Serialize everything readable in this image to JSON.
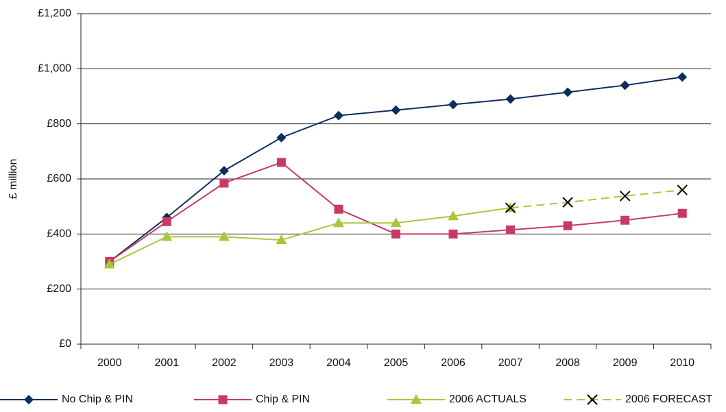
{
  "chart_data": {
    "type": "line",
    "y_label": "£ million",
    "categories": [
      "2000",
      "2001",
      "2002",
      "2003",
      "2004",
      "2005",
      "2006",
      "2007",
      "2008",
      "2009",
      "2010"
    ],
    "series": [
      {
        "name": "No Chip & PIN",
        "color": "#0d2d5e",
        "marker": "diamond",
        "values": [
          300,
          460,
          630,
          750,
          830,
          850,
          870,
          890,
          915,
          940,
          970
        ]
      },
      {
        "name": "Chip & PIN",
        "color": "#c83a62",
        "marker": "square",
        "values": [
          300,
          445,
          585,
          660,
          490,
          400,
          400,
          415,
          430,
          450,
          475
        ]
      },
      {
        "name": "2006 ACTUALS",
        "color": "#a6c83c",
        "marker": "triangle",
        "values": [
          290,
          390,
          390,
          378,
          440,
          440,
          465,
          495,
          null,
          null,
          null
        ]
      },
      {
        "name": "2006 FORECAST",
        "color": "#a6c83c",
        "marker": "x",
        "marker_color": "#000000",
        "dashed": true,
        "values": [
          null,
          null,
          null,
          null,
          null,
          null,
          null,
          495,
          515,
          538,
          560
        ]
      }
    ],
    "ylim": [
      0,
      1200
    ],
    "yticks": [
      {
        "value": 0,
        "label": "£0"
      },
      {
        "value": 200,
        "label": "£200"
      },
      {
        "value": 400,
        "label": "£400"
      },
      {
        "value": 600,
        "label": "£600"
      },
      {
        "value": 800,
        "label": "£800"
      },
      {
        "value": 1000,
        "label": "£1,000"
      },
      {
        "value": 1200,
        "label": "£1,200"
      }
    ],
    "grid": true
  }
}
